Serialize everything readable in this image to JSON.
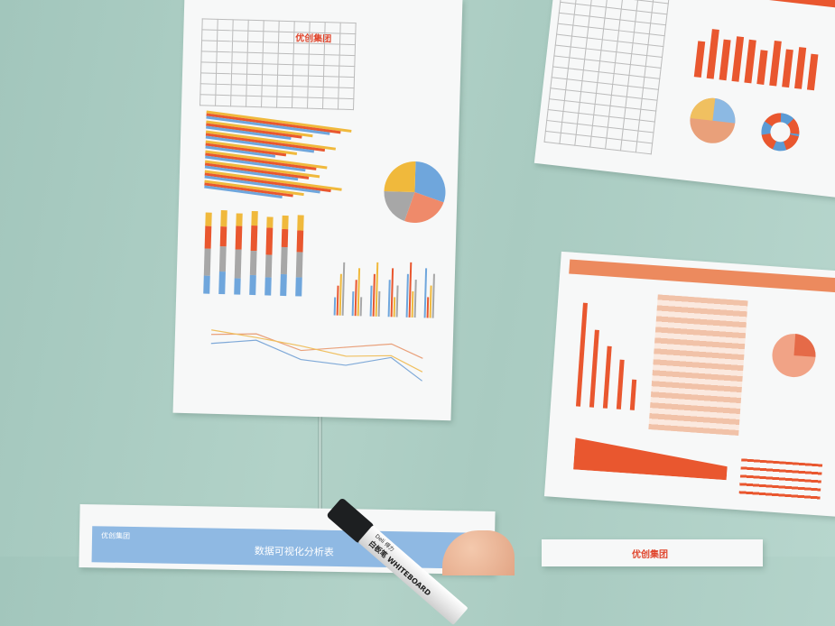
{
  "logo_text": "优创集团",
  "bottom_sheet": {
    "title": "数据可视化分析表"
  },
  "marker": {
    "brand": "Deli 得力",
    "label": "白板笔 WHITEBOARD"
  },
  "colors": {
    "orange": "#e9572f",
    "blue": "#6fa6dc",
    "gold": "#f0b93c",
    "gray": "#a7a7a7",
    "wall": "#a9cbc1"
  },
  "sheet1": {
    "hbars": [
      95,
      70,
      85,
      60,
      80,
      75,
      90,
      65
    ],
    "stacked": [
      [
        20,
        30,
        25,
        15
      ],
      [
        25,
        28,
        22,
        18
      ],
      [
        18,
        32,
        26,
        14
      ],
      [
        22,
        27,
        28,
        16
      ],
      [
        20,
        25,
        30,
        12
      ],
      [
        24,
        30,
        20,
        15
      ],
      [
        21,
        28,
        24,
        17
      ]
    ],
    "pie": [
      30,
      25,
      20,
      25
    ]
  },
  "sheet2": {
    "bars": [
      40,
      55,
      45,
      50,
      48,
      38,
      50,
      42,
      46,
      40
    ]
  },
  "sheet3": {
    "bars": [
      100,
      75,
      60,
      48,
      30
    ],
    "area": [
      80,
      70,
      60,
      50,
      40
    ]
  }
}
